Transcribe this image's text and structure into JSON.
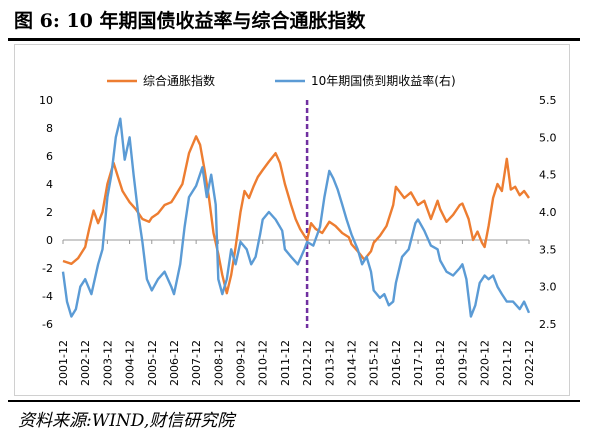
{
  "figure": {
    "title": "图 6:  10 年期国债收益率与综合通胀指数",
    "source": "资料来源:WIND,财信研究院"
  },
  "chart_data": {
    "type": "line",
    "title": "",
    "xlabel": "",
    "ylabel_left": "",
    "ylabel_right": "",
    "x_categories": [
      "2001-12",
      "2002-12",
      "2003-12",
      "2004-12",
      "2005-12",
      "2006-12",
      "2007-12",
      "2008-12",
      "2009-12",
      "2010-12",
      "2011-12",
      "2012-12",
      "2013-12",
      "2014-12",
      "2015-12",
      "2016-12",
      "2017-12",
      "2018-12",
      "2019-12",
      "2020-12",
      "2021-12",
      "2022-12"
    ],
    "x_range": [
      2001.92,
      2022.92
    ],
    "y_left": {
      "min": -6,
      "max": 10,
      "ticks": [
        "10",
        "8",
        "6",
        "4",
        "2",
        "0",
        "-2",
        "-4",
        "-6"
      ]
    },
    "y_right": {
      "min": 2.5,
      "max": 5.5,
      "ticks": [
        "5.5",
        "5.0",
        "4.5",
        "4.0",
        "3.5",
        "3.0",
        "2.5"
      ]
    },
    "vertical_marker": {
      "x": 2012.92,
      "color": "#7030a0",
      "style": "dashed"
    },
    "legend_position": "top",
    "grid": false,
    "series": [
      {
        "name": "综合通胀指数",
        "axis": "left",
        "color": "#ed7d31",
        "points": [
          [
            2001.92,
            -1.5
          ],
          [
            2002.3,
            -1.7
          ],
          [
            2002.6,
            -1.3
          ],
          [
            2002.92,
            -0.5
          ],
          [
            2003.1,
            0.8
          ],
          [
            2003.3,
            2.1
          ],
          [
            2003.5,
            1.2
          ],
          [
            2003.7,
            2.0
          ],
          [
            2003.92,
            4.0
          ],
          [
            2004.2,
            5.5
          ],
          [
            2004.4,
            4.5
          ],
          [
            2004.6,
            3.5
          ],
          [
            2004.8,
            3.0
          ],
          [
            2004.92,
            2.7
          ],
          [
            2005.2,
            2.2
          ],
          [
            2005.5,
            1.5
          ],
          [
            2005.8,
            1.3
          ],
          [
            2005.92,
            1.6
          ],
          [
            2006.2,
            1.9
          ],
          [
            2006.5,
            2.5
          ],
          [
            2006.8,
            2.7
          ],
          [
            2006.92,
            3.0
          ],
          [
            2007.3,
            4.0
          ],
          [
            2007.6,
            6.2
          ],
          [
            2007.92,
            7.4
          ],
          [
            2008.1,
            6.8
          ],
          [
            2008.3,
            5.0
          ],
          [
            2008.5,
            3.0
          ],
          [
            2008.7,
            0.5
          ],
          [
            2008.92,
            -1.0
          ],
          [
            2009.1,
            -2.5
          ],
          [
            2009.3,
            -3.8
          ],
          [
            2009.5,
            -2.5
          ],
          [
            2009.7,
            -0.5
          ],
          [
            2009.92,
            2.0
          ],
          [
            2010.1,
            3.5
          ],
          [
            2010.3,
            3.0
          ],
          [
            2010.5,
            3.8
          ],
          [
            2010.7,
            4.5
          ],
          [
            2010.92,
            5.0
          ],
          [
            2011.2,
            5.6
          ],
          [
            2011.5,
            6.2
          ],
          [
            2011.7,
            5.5
          ],
          [
            2011.92,
            4.0
          ],
          [
            2012.2,
            2.5
          ],
          [
            2012.4,
            1.5
          ],
          [
            2012.6,
            0.8
          ],
          [
            2012.92,
            0.0
          ],
          [
            2013.1,
            1.2
          ],
          [
            2013.3,
            0.8
          ],
          [
            2013.6,
            0.5
          ],
          [
            2013.92,
            1.3
          ],
          [
            2014.2,
            1.0
          ],
          [
            2014.5,
            0.5
          ],
          [
            2014.8,
            0.2
          ],
          [
            2014.92,
            -0.3
          ],
          [
            2015.2,
            -0.8
          ],
          [
            2015.5,
            -1.4
          ],
          [
            2015.8,
            -0.8
          ],
          [
            2015.92,
            -0.2
          ],
          [
            2016.2,
            0.3
          ],
          [
            2016.5,
            1.0
          ],
          [
            2016.8,
            2.5
          ],
          [
            2016.92,
            3.8
          ],
          [
            2017.3,
            3.0
          ],
          [
            2017.6,
            3.4
          ],
          [
            2017.92,
            2.5
          ],
          [
            2018.2,
            2.8
          ],
          [
            2018.5,
            1.5
          ],
          [
            2018.8,
            2.8
          ],
          [
            2018.92,
            2.2
          ],
          [
            2019.2,
            1.3
          ],
          [
            2019.5,
            1.8
          ],
          [
            2019.8,
            2.5
          ],
          [
            2019.92,
            2.6
          ],
          [
            2020.2,
            1.5
          ],
          [
            2020.4,
            0.0
          ],
          [
            2020.6,
            0.6
          ],
          [
            2020.8,
            -0.2
          ],
          [
            2020.92,
            -0.5
          ],
          [
            2021.1,
            1.0
          ],
          [
            2021.3,
            3.0
          ],
          [
            2021.5,
            4.0
          ],
          [
            2021.7,
            3.5
          ],
          [
            2021.92,
            5.8
          ],
          [
            2022.1,
            3.6
          ],
          [
            2022.3,
            3.8
          ],
          [
            2022.5,
            3.2
          ],
          [
            2022.7,
            3.5
          ],
          [
            2022.92,
            3.0
          ]
        ]
      },
      {
        "name": "10年期国债到期收益率(右)",
        "axis": "right",
        "color": "#5b9bd5",
        "points": [
          [
            2001.92,
            3.2
          ],
          [
            2002.1,
            2.8
          ],
          [
            2002.3,
            2.6
          ],
          [
            2002.5,
            2.7
          ],
          [
            2002.7,
            3.0
          ],
          [
            2002.92,
            3.1
          ],
          [
            2003.2,
            2.9
          ],
          [
            2003.5,
            3.3
          ],
          [
            2003.7,
            3.5
          ],
          [
            2003.92,
            4.2
          ],
          [
            2004.1,
            4.5
          ],
          [
            2004.3,
            5.0
          ],
          [
            2004.5,
            5.25
          ],
          [
            2004.7,
            4.7
          ],
          [
            2004.92,
            5.0
          ],
          [
            2005.1,
            4.5
          ],
          [
            2005.3,
            4.0
          ],
          [
            2005.5,
            3.6
          ],
          [
            2005.7,
            3.1
          ],
          [
            2005.92,
            2.95
          ],
          [
            2006.2,
            3.1
          ],
          [
            2006.5,
            3.2
          ],
          [
            2006.8,
            3.0
          ],
          [
            2006.92,
            2.9
          ],
          [
            2007.2,
            3.3
          ],
          [
            2007.4,
            3.8
          ],
          [
            2007.6,
            4.2
          ],
          [
            2007.92,
            4.35
          ],
          [
            2008.2,
            4.6
          ],
          [
            2008.4,
            4.2
          ],
          [
            2008.6,
            4.5
          ],
          [
            2008.8,
            4.1
          ],
          [
            2008.92,
            3.1
          ],
          [
            2009.1,
            2.9
          ],
          [
            2009.3,
            3.1
          ],
          [
            2009.5,
            3.5
          ],
          [
            2009.7,
            3.3
          ],
          [
            2009.92,
            3.6
          ],
          [
            2010.2,
            3.5
          ],
          [
            2010.4,
            3.3
          ],
          [
            2010.6,
            3.4
          ],
          [
            2010.8,
            3.7
          ],
          [
            2010.92,
            3.9
          ],
          [
            2011.2,
            4.0
          ],
          [
            2011.5,
            3.9
          ],
          [
            2011.8,
            3.75
          ],
          [
            2011.92,
            3.5
          ],
          [
            2012.2,
            3.4
          ],
          [
            2012.5,
            3.3
          ],
          [
            2012.8,
            3.5
          ],
          [
            2012.92,
            3.6
          ],
          [
            2013.2,
            3.55
          ],
          [
            2013.5,
            3.8
          ],
          [
            2013.7,
            4.2
          ],
          [
            2013.92,
            4.55
          ],
          [
            2014.1,
            4.45
          ],
          [
            2014.3,
            4.3
          ],
          [
            2014.5,
            4.1
          ],
          [
            2014.7,
            3.9
          ],
          [
            2014.92,
            3.7
          ],
          [
            2015.2,
            3.5
          ],
          [
            2015.4,
            3.3
          ],
          [
            2015.6,
            3.4
          ],
          [
            2015.8,
            3.2
          ],
          [
            2015.92,
            2.95
          ],
          [
            2016.2,
            2.85
          ],
          [
            2016.4,
            2.9
          ],
          [
            2016.6,
            2.75
          ],
          [
            2016.8,
            2.8
          ],
          [
            2016.92,
            3.05
          ],
          [
            2017.2,
            3.4
          ],
          [
            2017.5,
            3.5
          ],
          [
            2017.8,
            3.85
          ],
          [
            2017.92,
            3.9
          ],
          [
            2018.2,
            3.75
          ],
          [
            2018.5,
            3.55
          ],
          [
            2018.8,
            3.5
          ],
          [
            2018.92,
            3.35
          ],
          [
            2019.2,
            3.2
          ],
          [
            2019.5,
            3.15
          ],
          [
            2019.8,
            3.25
          ],
          [
            2019.92,
            3.3
          ],
          [
            2020.1,
            3.1
          ],
          [
            2020.3,
            2.6
          ],
          [
            2020.5,
            2.75
          ],
          [
            2020.7,
            3.05
          ],
          [
            2020.92,
            3.15
          ],
          [
            2021.1,
            3.1
          ],
          [
            2021.3,
            3.15
          ],
          [
            2021.5,
            3.0
          ],
          [
            2021.7,
            2.9
          ],
          [
            2021.92,
            2.8
          ],
          [
            2022.2,
            2.8
          ],
          [
            2022.5,
            2.7
          ],
          [
            2022.7,
            2.8
          ],
          [
            2022.92,
            2.65
          ]
        ]
      }
    ]
  }
}
